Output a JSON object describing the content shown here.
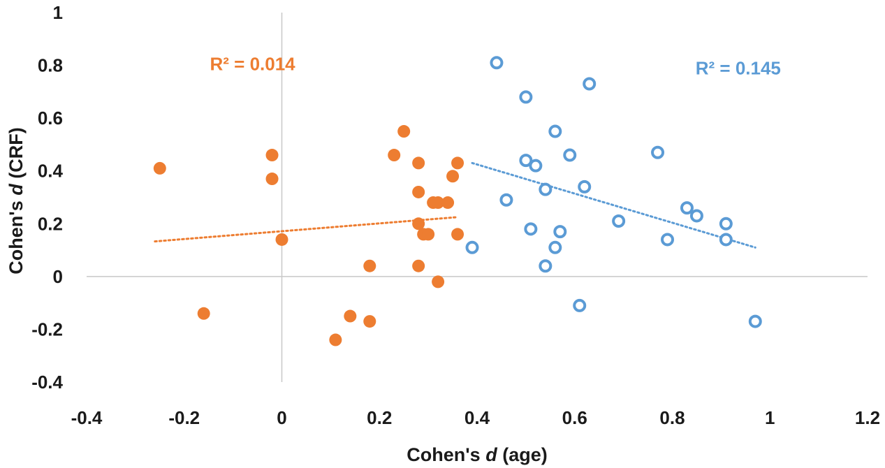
{
  "chart_data": {
    "type": "scatter",
    "title": "",
    "xlabel": {
      "prefix": "Cohen's ",
      "italic": "d",
      "suffix": " (age)"
    },
    "ylabel": {
      "prefix": "Cohen's ",
      "italic": "d",
      "suffix": " (CRF)"
    },
    "xlim": [
      -0.4,
      1.2
    ],
    "ylim": [
      -0.4,
      1.0
    ],
    "x_ticks": [
      {
        "value": -0.4,
        "label": "-0.4"
      },
      {
        "value": -0.2,
        "label": "-0.2"
      },
      {
        "value": 0,
        "label": "0"
      },
      {
        "value": 0.2,
        "label": "0.2"
      },
      {
        "value": 0.4,
        "label": "0.4"
      },
      {
        "value": 0.6,
        "label": "0.6"
      },
      {
        "value": 0.8,
        "label": "0.8"
      },
      {
        "value": 1.0,
        "label": "1"
      },
      {
        "value": 1.2,
        "label": "1.2"
      }
    ],
    "y_ticks": [
      {
        "value": -0.4,
        "label": "-0.4"
      },
      {
        "value": -0.2,
        "label": "-0.2"
      },
      {
        "value": 0,
        "label": "0"
      },
      {
        "value": 0.2,
        "label": "0.2"
      },
      {
        "value": 0.4,
        "label": "0.4"
      },
      {
        "value": 0.6,
        "label": "0.6"
      },
      {
        "value": 0.8,
        "label": "0.8"
      },
      {
        "value": 1.0,
        "label": "1"
      }
    ],
    "series": [
      {
        "name": "orange",
        "color": "#ED7D31",
        "marker": "filled-circle",
        "r2_label": "R² = 0.014",
        "r2_anchor": {
          "x": -0.06,
          "y": 0.805
        },
        "trendline": {
          "x": [
            -0.26,
            0.36
          ],
          "y": [
            0.133,
            0.225
          ]
        },
        "points": [
          {
            "x": -0.25,
            "y": 0.41
          },
          {
            "x": -0.16,
            "y": -0.14
          },
          {
            "x": -0.02,
            "y": 0.46
          },
          {
            "x": -0.02,
            "y": 0.37
          },
          {
            "x": 0.0,
            "y": 0.14
          },
          {
            "x": 0.11,
            "y": -0.24
          },
          {
            "x": 0.14,
            "y": -0.15
          },
          {
            "x": 0.18,
            "y": 0.04
          },
          {
            "x": 0.18,
            "y": -0.17
          },
          {
            "x": 0.23,
            "y": 0.46
          },
          {
            "x": 0.25,
            "y": 0.55
          },
          {
            "x": 0.28,
            "y": 0.43
          },
          {
            "x": 0.28,
            "y": 0.32
          },
          {
            "x": 0.28,
            "y": 0.2
          },
          {
            "x": 0.28,
            "y": 0.04
          },
          {
            "x": 0.29,
            "y": 0.16
          },
          {
            "x": 0.3,
            "y": 0.16
          },
          {
            "x": 0.31,
            "y": 0.28
          },
          {
            "x": 0.32,
            "y": 0.28
          },
          {
            "x": 0.32,
            "y": -0.02
          },
          {
            "x": 0.34,
            "y": 0.28
          },
          {
            "x": 0.35,
            "y": 0.38
          },
          {
            "x": 0.36,
            "y": 0.43
          },
          {
            "x": 0.36,
            "y": 0.16
          }
        ]
      },
      {
        "name": "blue",
        "color": "#5B9BD5",
        "marker": "open-circle",
        "r2_label": "R² = 0.145",
        "r2_anchor": {
          "x": 0.935,
          "y": 0.79
        },
        "trendline": {
          "x": [
            0.39,
            0.97
          ],
          "y": [
            0.43,
            0.11
          ]
        },
        "points": [
          {
            "x": 0.39,
            "y": 0.11
          },
          {
            "x": 0.44,
            "y": 0.81
          },
          {
            "x": 0.46,
            "y": 0.29
          },
          {
            "x": 0.5,
            "y": 0.44
          },
          {
            "x": 0.5,
            "y": 0.68
          },
          {
            "x": 0.52,
            "y": 0.42
          },
          {
            "x": 0.51,
            "y": 0.18
          },
          {
            "x": 0.54,
            "y": 0.33
          },
          {
            "x": 0.54,
            "y": 0.04
          },
          {
            "x": 0.56,
            "y": 0.55
          },
          {
            "x": 0.56,
            "y": 0.11
          },
          {
            "x": 0.57,
            "y": 0.17
          },
          {
            "x": 0.59,
            "y": 0.46
          },
          {
            "x": 0.61,
            "y": -0.11
          },
          {
            "x": 0.62,
            "y": 0.34
          },
          {
            "x": 0.63,
            "y": 0.73
          },
          {
            "x": 0.69,
            "y": 0.21
          },
          {
            "x": 0.77,
            "y": 0.47
          },
          {
            "x": 0.79,
            "y": 0.14
          },
          {
            "x": 0.83,
            "y": 0.26
          },
          {
            "x": 0.85,
            "y": 0.23
          },
          {
            "x": 0.91,
            "y": 0.2
          },
          {
            "x": 0.91,
            "y": 0.14
          },
          {
            "x": 0.97,
            "y": -0.17
          }
        ]
      }
    ]
  }
}
